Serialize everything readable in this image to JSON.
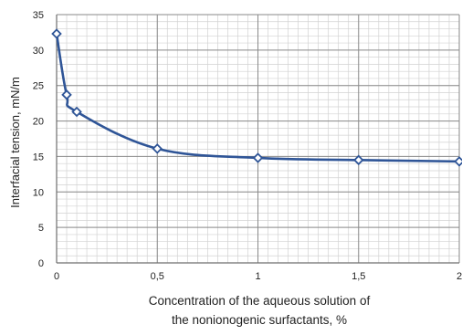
{
  "chart_data": {
    "type": "line",
    "title": "",
    "xlabel_lines": [
      "Concentration of the aqueous solution of",
      "the nonionogenic surfactants, %"
    ],
    "ylabel": "Interfacial tension, mN/m",
    "xlim": [
      0,
      2
    ],
    "ylim": [
      0,
      35
    ],
    "x_ticks": [
      0,
      0.5,
      1,
      1.5,
      2
    ],
    "x_tick_labels": [
      "0",
      "0,5",
      "1",
      "1,5",
      "2"
    ],
    "y_ticks": [
      0,
      5,
      10,
      15,
      20,
      25,
      30,
      35
    ],
    "y_tick_labels": [
      "0",
      "5",
      "10",
      "15",
      "20",
      "25",
      "30",
      "35"
    ],
    "grid": true,
    "minor_x_step": 0.05,
    "minor_y_step": 1,
    "legend": "none",
    "series": [
      {
        "x": [
          0,
          0.05,
          0.1,
          0.5,
          1,
          1.5,
          2
        ],
        "y": [
          32.3,
          23.7,
          21.3,
          16.1,
          14.8,
          14.5,
          14.3
        ]
      }
    ],
    "colors": {
      "line": "#2f5597",
      "marker_fill": "#ffffff",
      "grid_major": "#8a8a8a",
      "grid_minor": "#d2d2d2",
      "axis": "#6e6e6e"
    }
  }
}
